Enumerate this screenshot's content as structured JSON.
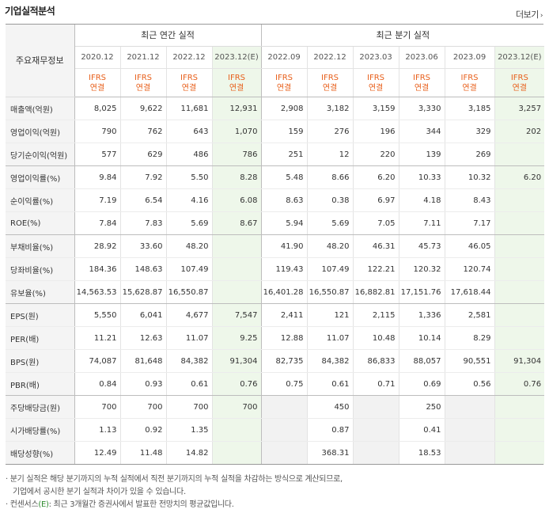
{
  "title": "기업실적분석",
  "more_label": "더보기",
  "header": {
    "row_label": "주요재무정보",
    "annual_group": "최근 연간 실적",
    "quarter_group": "최근 분기 실적",
    "periods": [
      "2020.12",
      "2021.12",
      "2022.12",
      "2023.12(E)",
      "2022.09",
      "2022.12",
      "2023.03",
      "2023.06",
      "2023.09",
      "2023.12(E)"
    ],
    "ifrs": "IFRS",
    "basis": "연결"
  },
  "rows": [
    {
      "label": "매출액(억원)",
      "values": [
        "8,025",
        "9,622",
        "11,681",
        "12,931",
        "2,908",
        "3,182",
        "3,159",
        "3,330",
        "3,185",
        "3,257"
      ]
    },
    {
      "label": "영업이익(억원)",
      "values": [
        "790",
        "762",
        "643",
        "1,070",
        "159",
        "276",
        "196",
        "344",
        "329",
        "202"
      ]
    },
    {
      "label": "당기순이익(억원)",
      "values": [
        "577",
        "629",
        "486",
        "786",
        "251",
        "12",
        "220",
        "139",
        "269",
        ""
      ]
    },
    {
      "label": "영업이익률(%)",
      "values": [
        "9.84",
        "7.92",
        "5.50",
        "8.28",
        "5.48",
        "8.66",
        "6.20",
        "10.33",
        "10.32",
        "6.20"
      ]
    },
    {
      "label": "순이익률(%)",
      "values": [
        "7.19",
        "6.54",
        "4.16",
        "6.08",
        "8.63",
        "0.38",
        "6.97",
        "4.18",
        "8.43",
        ""
      ]
    },
    {
      "label": "ROE(%)",
      "values": [
        "7.84",
        "7.83",
        "5.69",
        "8.67",
        "5.94",
        "5.69",
        "7.05",
        "7.11",
        "7.17",
        ""
      ]
    },
    {
      "label": "부채비율(%)",
      "values": [
        "28.92",
        "33.60",
        "48.20",
        "",
        "41.90",
        "48.20",
        "46.31",
        "45.73",
        "46.05",
        ""
      ]
    },
    {
      "label": "당좌비율(%)",
      "values": [
        "184.36",
        "148.63",
        "107.49",
        "",
        "119.43",
        "107.49",
        "122.21",
        "120.32",
        "120.74",
        ""
      ]
    },
    {
      "label": "유보율(%)",
      "values": [
        "14,563.53",
        "15,628.87",
        "16,550.87",
        "",
        "16,401.28",
        "16,550.87",
        "16,882.81",
        "17,151.76",
        "17,618.44",
        ""
      ]
    },
    {
      "label": "EPS(원)",
      "values": [
        "5,550",
        "6,041",
        "4,677",
        "7,547",
        "2,411",
        "121",
        "2,115",
        "1,336",
        "2,581",
        ""
      ]
    },
    {
      "label": "PER(배)",
      "values": [
        "11.21",
        "12.63",
        "11.07",
        "9.25",
        "12.88",
        "11.07",
        "10.48",
        "10.14",
        "8.29",
        ""
      ]
    },
    {
      "label": "BPS(원)",
      "values": [
        "74,087",
        "81,648",
        "84,382",
        "91,304",
        "82,735",
        "84,382",
        "86,833",
        "88,057",
        "90,551",
        "91,304"
      ]
    },
    {
      "label": "PBR(배)",
      "values": [
        "0.84",
        "0.93",
        "0.61",
        "0.76",
        "0.75",
        "0.61",
        "0.71",
        "0.69",
        "0.56",
        "0.76"
      ]
    },
    {
      "label": "주당배당금(원)",
      "values": [
        "700",
        "700",
        "700",
        "700",
        "",
        "450",
        "",
        "250",
        "",
        ""
      ]
    },
    {
      "label": "시가배당률(%)",
      "values": [
        "1.13",
        "0.92",
        "1.35",
        "",
        "",
        "0.87",
        "",
        "0.41",
        "",
        ""
      ]
    },
    {
      "label": "배당성향(%)",
      "values": [
        "12.49",
        "11.48",
        "14.82",
        "",
        "",
        "368.31",
        "",
        "18.53",
        "",
        ""
      ]
    }
  ],
  "notes": {
    "line1": "· 분기 실적은 해당 분기까지의 누적 실적에서 직전 분기까지의 누적 실적을 차감하는 방식으로 계산되므로,",
    "line2": "기업에서 공시한 분기 실적과 차이가 있을 수 있습니다.",
    "line3_a": "· 컨센서스",
    "line3_e": "(E)",
    "line3_b": ": 최근 3개월간 증권사에서 발표한 전망치의 평균값입니다."
  }
}
